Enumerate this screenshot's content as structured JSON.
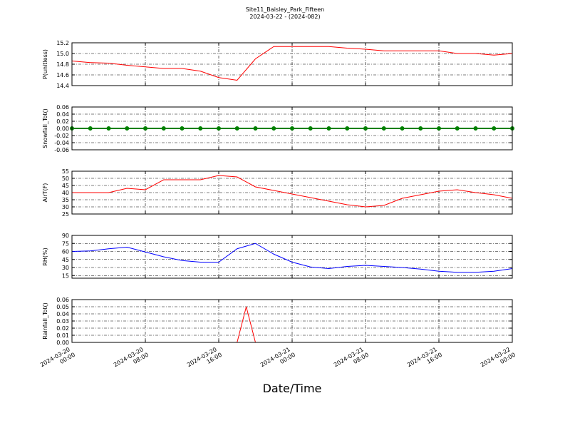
{
  "title": "Site11_Baisley_Park_Fifteen",
  "subtitle": "2024-03-22 - (2024-082)",
  "chart_data": [
    {
      "type": "line",
      "ylabel": "P(unitless)",
      "color": "#ff0000",
      "x": [
        "2024-03-20 00:00",
        "2024-03-20 02:00",
        "2024-03-20 04:00",
        "2024-03-20 06:00",
        "2024-03-20 08:00",
        "2024-03-20 10:00",
        "2024-03-20 12:00",
        "2024-03-20 14:00",
        "2024-03-20 16:00",
        "2024-03-20 18:00",
        "2024-03-20 20:00",
        "2024-03-20 22:00",
        "2024-03-21 00:00",
        "2024-03-21 02:00",
        "2024-03-21 04:00",
        "2024-03-21 06:00",
        "2024-03-21 08:00",
        "2024-03-21 10:00",
        "2024-03-21 12:00",
        "2024-03-21 14:00",
        "2024-03-21 16:00",
        "2024-03-21 18:00",
        "2024-03-21 20:00",
        "2024-03-21 22:00",
        "2024-03-22 00:00"
      ],
      "values": [
        14.86,
        14.83,
        14.82,
        14.78,
        14.75,
        14.72,
        14.72,
        14.67,
        14.55,
        14.5,
        14.9,
        15.13,
        15.13,
        15.13,
        15.13,
        15.1,
        15.08,
        15.05,
        15.05,
        15.05,
        15.05,
        15.0,
        15.0,
        14.97,
        15.0
      ],
      "xlim": [
        "2024-03-20 00:00",
        "2024-03-22 00:00"
      ],
      "xticks": [
        "2024-03-20 00:00",
        "2024-03-20 08:00",
        "2024-03-20 16:00",
        "2024-03-21 00:00",
        "2024-03-21 08:00",
        "2024-03-21 16:00",
        "2024-03-22 00:00"
      ],
      "ylim": [
        14.4,
        15.2
      ],
      "yticks": [
        14.4,
        14.6,
        14.8,
        {
          "value": 15,
          "label": "15.0"
        },
        15.2
      ],
      "grid": true
    },
    {
      "type": "line",
      "ylabel": "Snowfall_Tot()",
      "color": "#008000",
      "marker": "o",
      "x": [
        "2024-03-20 00:00",
        "2024-03-20 02:00",
        "2024-03-20 04:00",
        "2024-03-20 06:00",
        "2024-03-20 08:00",
        "2024-03-20 10:00",
        "2024-03-20 12:00",
        "2024-03-20 14:00",
        "2024-03-20 16:00",
        "2024-03-20 18:00",
        "2024-03-20 20:00",
        "2024-03-20 22:00",
        "2024-03-21 00:00",
        "2024-03-21 02:00",
        "2024-03-21 04:00",
        "2024-03-21 06:00",
        "2024-03-21 08:00",
        "2024-03-21 10:00",
        "2024-03-21 12:00",
        "2024-03-21 14:00",
        "2024-03-21 16:00",
        "2024-03-21 18:00",
        "2024-03-21 20:00",
        "2024-03-21 22:00",
        "2024-03-22 00:00"
      ],
      "values": [
        0,
        0,
        0,
        0,
        0,
        0,
        0,
        0,
        0,
        0,
        0,
        0,
        0,
        0,
        0,
        0,
        0,
        0,
        0,
        0,
        0,
        0,
        0,
        0,
        0
      ],
      "xlim": [
        "2024-03-20 00:00",
        "2024-03-22 00:00"
      ],
      "xticks": [
        "2024-03-20 00:00",
        "2024-03-20 08:00",
        "2024-03-20 16:00",
        "2024-03-21 00:00",
        "2024-03-21 08:00",
        "2024-03-21 16:00",
        "2024-03-22 00:00"
      ],
      "ylim": [
        -0.06,
        0.06
      ],
      "yticks": [
        -0.06,
        -0.04,
        -0.02,
        {
          "value": 0,
          "label": "0.00"
        },
        0.02,
        0.04,
        0.06
      ],
      "grid": true
    },
    {
      "type": "line",
      "ylabel": "AirT(F)",
      "color": "#ff0000",
      "x": [
        "2024-03-20 00:00",
        "2024-03-20 02:00",
        "2024-03-20 04:00",
        "2024-03-20 06:00",
        "2024-03-20 08:00",
        "2024-03-20 10:00",
        "2024-03-20 12:00",
        "2024-03-20 14:00",
        "2024-03-20 16:00",
        "2024-03-20 18:00",
        "2024-03-20 20:00",
        "2024-03-20 22:00",
        "2024-03-21 00:00",
        "2024-03-21 02:00",
        "2024-03-21 04:00",
        "2024-03-21 06:00",
        "2024-03-21 08:00",
        "2024-03-21 10:00",
        "2024-03-21 12:00",
        "2024-03-21 14:00",
        "2024-03-21 16:00",
        "2024-03-21 18:00",
        "2024-03-21 20:00",
        "2024-03-21 22:00",
        "2024-03-22 00:00"
      ],
      "values": [
        40,
        40,
        40,
        43,
        42,
        49,
        49,
        49,
        52,
        51,
        44,
        41.5,
        39,
        36.5,
        34,
        31.5,
        30,
        31,
        36,
        38.5,
        41,
        42,
        40,
        38.5,
        36
      ],
      "xlim": [
        "2024-03-20 00:00",
        "2024-03-22 00:00"
      ],
      "xticks": [
        "2024-03-20 00:00",
        "2024-03-20 08:00",
        "2024-03-20 16:00",
        "2024-03-21 00:00",
        "2024-03-21 08:00",
        "2024-03-21 16:00",
        "2024-03-22 00:00"
      ],
      "ylim": [
        25,
        55
      ],
      "yticks": [
        25,
        30,
        35,
        40,
        45,
        50,
        55
      ],
      "grid": true
    },
    {
      "type": "line",
      "ylabel": "RH(%)",
      "color": "#0000ff",
      "x": [
        "2024-03-20 00:00",
        "2024-03-20 02:00",
        "2024-03-20 04:00",
        "2024-03-20 06:00",
        "2024-03-20 08:00",
        "2024-03-20 10:00",
        "2024-03-20 12:00",
        "2024-03-20 14:00",
        "2024-03-20 16:00",
        "2024-03-20 18:00",
        "2024-03-20 20:00",
        "2024-03-20 22:00",
        "2024-03-21 00:00",
        "2024-03-21 02:00",
        "2024-03-21 04:00",
        "2024-03-21 06:00",
        "2024-03-21 08:00",
        "2024-03-21 10:00",
        "2024-03-21 12:00",
        "2024-03-21 14:00",
        "2024-03-21 16:00",
        "2024-03-21 18:00",
        "2024-03-21 20:00",
        "2024-03-21 22:00",
        "2024-03-22 00:00"
      ],
      "values": [
        60,
        61,
        65,
        68,
        59,
        50,
        43,
        40,
        40,
        65,
        75,
        55,
        40,
        31,
        28,
        32,
        34,
        32,
        30,
        27,
        23,
        21,
        21,
        23,
        28
      ],
      "xlim": [
        "2024-03-20 00:00",
        "2024-03-22 00:00"
      ],
      "xticks": [
        "2024-03-20 00:00",
        "2024-03-20 08:00",
        "2024-03-20 16:00",
        "2024-03-21 00:00",
        "2024-03-21 08:00",
        "2024-03-21 16:00",
        "2024-03-22 00:00"
      ],
      "ylim": [
        10,
        90
      ],
      "yticks": [
        15,
        30,
        45,
        60,
        75,
        90
      ],
      "grid": true
    },
    {
      "type": "line",
      "ylabel": "Rainfall_Tot()",
      "xlabel": "Date/Time",
      "color": "#ff0000",
      "x": [
        "2024-03-20 00:00",
        "2024-03-20 01:00",
        "2024-03-20 02:00",
        "2024-03-20 03:00",
        "2024-03-20 04:00",
        "2024-03-20 05:00",
        "2024-03-20 06:00",
        "2024-03-20 07:00",
        "2024-03-20 08:00",
        "2024-03-20 09:00",
        "2024-03-20 10:00",
        "2024-03-20 11:00",
        "2024-03-20 12:00",
        "2024-03-20 13:00",
        "2024-03-20 14:00",
        "2024-03-20 15:00",
        "2024-03-20 16:00",
        "2024-03-20 17:00",
        "2024-03-20 18:00",
        "2024-03-20 19:00",
        "2024-03-20 20:00",
        "2024-03-20 21:00",
        "2024-03-20 22:00",
        "2024-03-20 23:00",
        "2024-03-21 00:00",
        "2024-03-21 01:00",
        "2024-03-21 02:00",
        "2024-03-21 03:00",
        "2024-03-21 04:00",
        "2024-03-21 05:00",
        "2024-03-21 06:00",
        "2024-03-21 07:00",
        "2024-03-21 08:00",
        "2024-03-21 09:00",
        "2024-03-21 10:00",
        "2024-03-21 11:00",
        "2024-03-21 12:00",
        "2024-03-21 13:00",
        "2024-03-21 14:00",
        "2024-03-21 15:00",
        "2024-03-21 16:00",
        "2024-03-21 17:00",
        "2024-03-21 18:00",
        "2024-03-21 19:00",
        "2024-03-21 20:00",
        "2024-03-21 21:00",
        "2024-03-21 22:00",
        "2024-03-21 23:00",
        "2024-03-22 00:00"
      ],
      "values": [
        0,
        0,
        0,
        0,
        0,
        0,
        0,
        0,
        0,
        0,
        0,
        0,
        0,
        0,
        0,
        0,
        0,
        0,
        0,
        0.05,
        0,
        0,
        0,
        0,
        0,
        0,
        0,
        0,
        0,
        0,
        0,
        0,
        0,
        0,
        0,
        0,
        0,
        0,
        0,
        0,
        0,
        0,
        0,
        0,
        0,
        0,
        0,
        0,
        0
      ],
      "xlim": [
        "2024-03-20 00:00",
        "2024-03-22 00:00"
      ],
      "xticks": [
        "2024-03-20 00:00",
        "2024-03-20 08:00",
        "2024-03-20 16:00",
        "2024-03-21 00:00",
        "2024-03-21 08:00",
        "2024-03-21 16:00",
        "2024-03-22 00:00"
      ],
      "ylim": [
        0,
        0.06
      ],
      "yticks": [
        {
          "value": 0,
          "label": "0.00"
        },
        0.01,
        0.02,
        0.03,
        0.04,
        0.05,
        0.06
      ],
      "grid": true
    }
  ]
}
